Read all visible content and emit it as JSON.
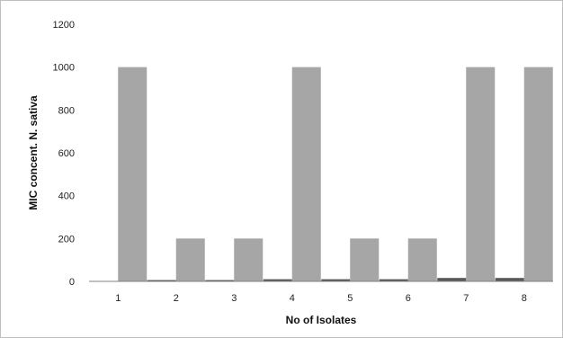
{
  "chart_data": {
    "type": "bar",
    "title": "",
    "xlabel": "No of Isolates",
    "ylabel": "MIC concent. N. sativa",
    "categories": [
      "1",
      "2",
      "3",
      "4",
      "5",
      "6",
      "7",
      "8"
    ],
    "series": [
      {
        "values": [
          0,
          6,
          6,
          10,
          10,
          10,
          16,
          16
        ],
        "color": "#595959"
      },
      {
        "values": [
          1000,
          200,
          200,
          1000,
          200,
          200,
          1000,
          1000
        ],
        "color": "#a6a6a6"
      }
    ],
    "ylim": [
      0,
      1200
    ],
    "yticks": [
      0,
      200,
      400,
      600,
      800,
      1000,
      1200
    ],
    "grid": false,
    "legend": "none"
  }
}
